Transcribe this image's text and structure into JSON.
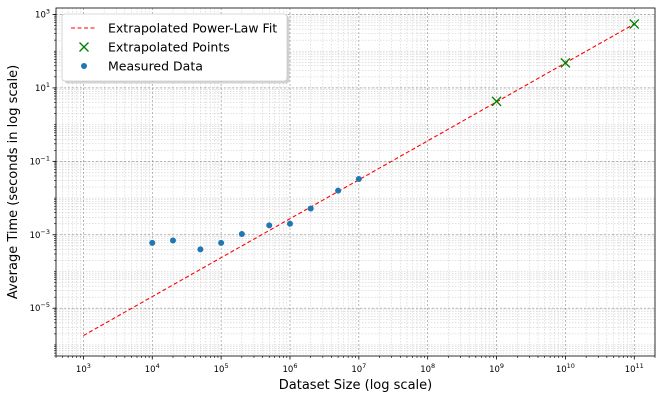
{
  "chart_data": {
    "type": "scatter",
    "xlabel": "Dataset Size (log scale)",
    "ylabel": "Average Time (seconds in log scale)",
    "xscale": "log",
    "yscale": "log",
    "xlim": [
      400,
      200000000000
    ],
    "ylim": [
      5e-07,
      1500
    ],
    "grid": true,
    "legend_position": "top-left",
    "x_ticks": [
      {
        "value": 1000,
        "base": "10",
        "exp": "3"
      },
      {
        "value": 10000,
        "base": "10",
        "exp": "4"
      },
      {
        "value": 100000,
        "base": "10",
        "exp": "5"
      },
      {
        "value": 1000000,
        "base": "10",
        "exp": "6"
      },
      {
        "value": 10000000,
        "base": "10",
        "exp": "7"
      },
      {
        "value": 100000000,
        "base": "10",
        "exp": "8"
      },
      {
        "value": 1000000000,
        "base": "10",
        "exp": "9"
      },
      {
        "value": 10000000000,
        "base": "10",
        "exp": "10"
      },
      {
        "value": 100000000000,
        "base": "10",
        "exp": "11"
      }
    ],
    "y_ticks": [
      {
        "value": 1e-05,
        "base": "10",
        "exp": "−5"
      },
      {
        "value": 0.001,
        "base": "10",
        "exp": "−3"
      },
      {
        "value": 0.1,
        "base": "10",
        "exp": "−1"
      },
      {
        "value": 10,
        "base": "10",
        "exp": "1"
      },
      {
        "value": 1000,
        "base": "10",
        "exp": "3"
      }
    ],
    "series": [
      {
        "name": "Extrapolated Power-Law Fit",
        "kind": "line",
        "style": "dashed",
        "color": "#ff0000",
        "x": [
          1000,
          100000000000
        ],
        "y": [
          1.8e-06,
          550
        ]
      },
      {
        "name": "Extrapolated Points",
        "kind": "marker-x",
        "color": "#008000",
        "x": [
          1000000000,
          10000000000,
          100000000000
        ],
        "y": [
          4.3,
          48,
          550
        ]
      },
      {
        "name": "Measured Data",
        "kind": "marker-circle",
        "color": "#1f77b4",
        "x": [
          10000,
          20000,
          50000,
          100000,
          200000,
          500000,
          1000000,
          2000000,
          5000000,
          10000000
        ],
        "y": [
          0.0006,
          0.0007,
          0.0004,
          0.0006,
          0.00105,
          0.0018,
          0.002,
          0.0052,
          0.016,
          0.033
        ]
      }
    ]
  }
}
